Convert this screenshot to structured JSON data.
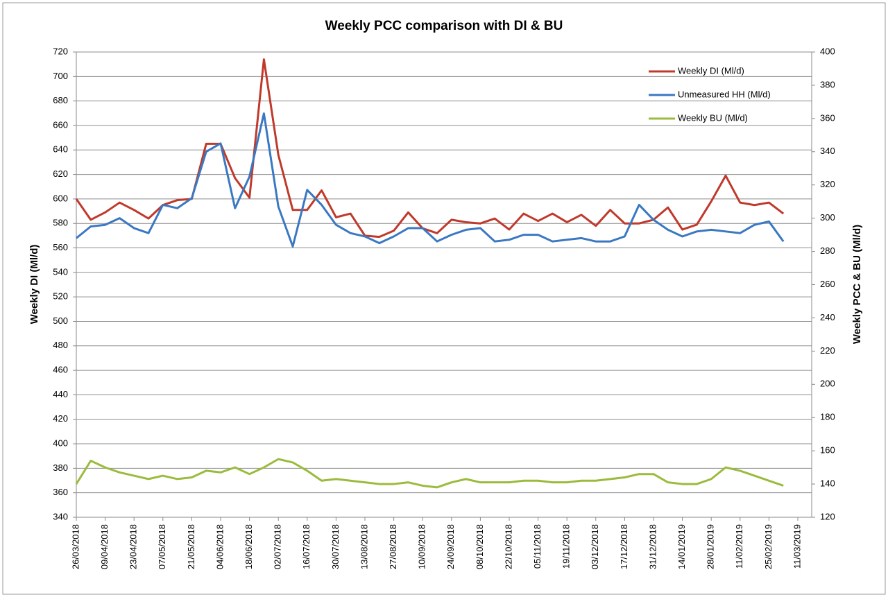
{
  "chart_data": {
    "type": "line",
    "title": "Weekly PCC comparison with DI & BU",
    "y_label": "Weekly DI (Ml/d)",
    "y2_label": "Weekly PCC & BU (Ml/d)",
    "categories": [
      "26/03/2018",
      null,
      "09/04/2018",
      null,
      "23/04/2018",
      null,
      "07/05/2018",
      null,
      "21/05/2018",
      null,
      "04/06/2018",
      null,
      "18/06/2018",
      null,
      "02/07/2018",
      null,
      "16/07/2018",
      null,
      "30/07/2018",
      null,
      "13/08/2018",
      null,
      "27/08/2018",
      null,
      "10/09/2018",
      null,
      "24/09/2018",
      null,
      "08/10/2018",
      null,
      "22/10/2018",
      null,
      "05/11/2018",
      null,
      "19/11/2018",
      null,
      "03/12/2018",
      null,
      "17/12/2018",
      null,
      "31/12/2018",
      null,
      "14/01/2019",
      null,
      "28/01/2019",
      null,
      "11/02/2019",
      null,
      "25/02/2019",
      null,
      "11/03/2019"
    ],
    "series": [
      {
        "name": "Weekly DI (Ml/d)",
        "color": "#c0392b",
        "axis": "y",
        "values": [
          600,
          583,
          589,
          597,
          591,
          584,
          595,
          599,
          600,
          645,
          645,
          617,
          601,
          714,
          636,
          591,
          591,
          607,
          585,
          588,
          570,
          569,
          574,
          589,
          576,
          572,
          583,
          581,
          580,
          584,
          575,
          588,
          582,
          588,
          581,
          587,
          578,
          591,
          580,
          580,
          583,
          593,
          575,
          579,
          598,
          619,
          597,
          595,
          597,
          588,
          null
        ]
      },
      {
        "name": "Unmeasured HH (Ml/d)",
        "color": "#3a78c2",
        "axis": "y2",
        "values": [
          288,
          295,
          296,
          300,
          294,
          291,
          308,
          306,
          312,
          340,
          345,
          306,
          325,
          363,
          307,
          283,
          317,
          308,
          296,
          291,
          289,
          285,
          289,
          294,
          294,
          286,
          290,
          293,
          294,
          286,
          287,
          290,
          290,
          286,
          287,
          288,
          286,
          286,
          289,
          308,
          299,
          293,
          289,
          292,
          293,
          292,
          291,
          296,
          298,
          286,
          null
        ]
      },
      {
        "name": "Weekly BU (Ml/d)",
        "color": "#9bbb3c",
        "axis": "y2",
        "values": [
          140,
          154,
          150,
          147,
          145,
          143,
          145,
          143,
          144,
          148,
          147,
          150,
          146,
          150,
          155,
          153,
          148,
          142,
          143,
          142,
          141,
          140,
          140,
          141,
          139,
          138,
          141,
          143,
          141,
          141,
          141,
          142,
          142,
          141,
          141,
          142,
          142,
          143,
          144,
          146,
          146,
          141,
          140,
          140,
          143,
          150,
          148,
          145,
          142,
          139,
          null
        ]
      }
    ],
    "ylim": [
      340,
      720
    ],
    "yticks": [
      340,
      360,
      380,
      400,
      420,
      440,
      460,
      480,
      500,
      520,
      540,
      560,
      580,
      600,
      620,
      640,
      660,
      680,
      700,
      720
    ],
    "y2lim": [
      120,
      400
    ],
    "y2ticks": [
      120,
      140,
      160,
      180,
      200,
      220,
      240,
      260,
      280,
      300,
      320,
      340,
      360,
      380,
      400
    ],
    "grid": true,
    "legend": "top-right"
  }
}
